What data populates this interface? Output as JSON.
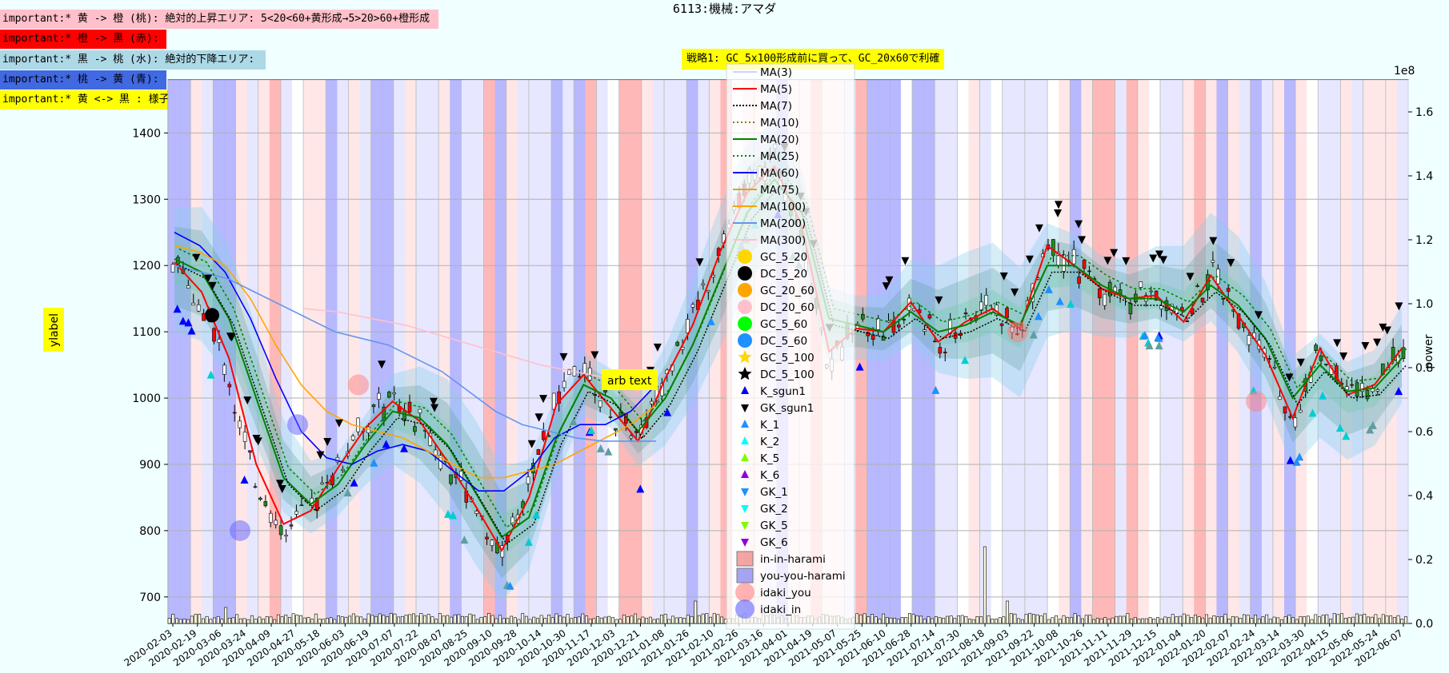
{
  "header": {
    "title": "6113:機械:アマダ",
    "strategy": "戦略1: GC_5x100形成前に買って、GC_20x60で利確"
  },
  "notes": [
    {
      "text": "important:* 黄 -> 橙 (桃): 絶対的上昇エリア: 5<20<60+黄形成→5>20>60+橙形成",
      "color": "#ffc0cb"
    },
    {
      "text": "important:* 橙 -> 黒 (赤):",
      "color": "#ff0000"
    },
    {
      "text": "important:* 黒 -> 桃 (水): 絶対的下降エリア:",
      "color": "#add8e6"
    },
    {
      "text": "important:* 桃 -> 黄 (青):",
      "color": "#4169e1"
    },
    {
      "text": "important:* 黄 <-> 黒 : 様子見:",
      "color": "#ffff00"
    }
  ],
  "annotation": {
    "text": "arb text"
  },
  "chart_data": {
    "type": "line",
    "title": "6113:機械:アマダ",
    "xlabel": "",
    "ylabel": "ylabel",
    "y2label": "power",
    "y2_exponent": "1e8",
    "ylim": [
      660,
      1480
    ],
    "y2lim": [
      0,
      1.7
    ],
    "yticks": [
      700,
      800,
      900,
      1000,
      1100,
      1200,
      1300,
      1400
    ],
    "y2ticks": [
      0.0,
      0.2,
      0.4,
      0.6,
      0.8,
      1.0,
      1.2,
      1.4,
      1.6
    ],
    "grid": true,
    "legend_position": "upper-center",
    "x_start": "2020-02-03",
    "x_end": "2022-06-07",
    "xtick_labels": [
      "2020-02-03",
      "2020-02-19",
      "2020-03-06",
      "2020-03-24",
      "2020-04-09",
      "2020-04-27",
      "2020-05-18",
      "2020-06-03",
      "2020-06-19",
      "2020-07-07",
      "2020-07-22",
      "2020-08-07",
      "2020-08-25",
      "2020-09-10",
      "2020-09-28",
      "2020-10-14",
      "2020-10-30",
      "2020-11-17",
      "2020-12-03",
      "2020-12-21",
      "2021-01-08",
      "2021-01-26",
      "2021-02-10",
      "2021-02-26",
      "2021-03-16",
      "2021-04-01",
      "2021-04-19",
      "2021-05-07",
      "2021-05-25",
      "2021-06-10",
      "2021-06-28",
      "2021-07-14",
      "2021-07-30",
      "2021-08-18",
      "2021-09-03",
      "2021-09-22",
      "2021-10-08",
      "2021-10-26",
      "2021-11-11",
      "2021-11-29",
      "2021-12-15",
      "2022-01-04",
      "2022-01-20",
      "2022-02-07",
      "2022-02-24",
      "2022-03-14",
      "2022-03-30",
      "2022-04-15",
      "2022-05-06",
      "2022-05-24",
      "2022-06-07"
    ],
    "price_series": [
      {
        "name": "close",
        "values": [
          1205,
          1150,
          1040,
          880,
          800,
          830,
          900,
          960,
          1000,
          960,
          900,
          830,
          760,
          860,
          1000,
          1040,
          980,
          930,
          1040,
          1120,
          1230,
          1320,
          1360,
          1250,
          1050,
          1110,
          1100,
          1150,
          1080,
          1120,
          1140,
          1100,
          1240,
          1200,
          1160,
          1150,
          1160,
          1110,
          1190,
          1120,
          1060,
          960,
          1080,
          1000,
          1020,
          1080
        ]
      },
      {
        "name": "MA(5)",
        "values": [
          1205,
          1160,
          1060,
          900,
          810,
          830,
          895,
          955,
          995,
          965,
          905,
          840,
          770,
          850,
          990,
          1035,
          985,
          935,
          1030,
          1110,
          1220,
          1310,
          1350,
          1260,
          1070,
          1105,
          1100,
          1145,
          1085,
          1115,
          1135,
          1105,
          1230,
          1200,
          1165,
          1150,
          1155,
          1115,
          1185,
          1125,
          1065,
          970,
          1075,
          1005,
          1020,
          1075
        ]
      },
      {
        "name": "MA(20)",
        "values": [
          1210,
          1190,
          1120,
          1000,
          880,
          840,
          870,
          930,
          980,
          970,
          930,
          860,
          790,
          820,
          940,
          1020,
          1000,
          950,
          1000,
          1080,
          1180,
          1280,
          1330,
          1280,
          1120,
          1110,
          1100,
          1130,
          1100,
          1110,
          1130,
          1110,
          1200,
          1200,
          1170,
          1150,
          1150,
          1130,
          1170,
          1140,
          1090,
          1000,
          1050,
          1010,
          1015,
          1060
        ]
      },
      {
        "name": "MA(60)",
        "values": [
          1250,
          1230,
          1190,
          1120,
          1030,
          950,
          910,
          900,
          920,
          930,
          920,
          890,
          860,
          860,
          890,
          940,
          960,
          960,
          980,
          1020
        ]
      },
      {
        "name": "MA(100)",
        "values": [
          1230,
          1220,
          1200,
          1150,
          1080,
          1020,
          980,
          960,
          950,
          940,
          920,
          900,
          880,
          880,
          890,
          900,
          920,
          940,
          960,
          990
        ]
      },
      {
        "name": "MA(200)",
        "values": [
          1200,
          1190,
          1180,
          1160,
          1140,
          1120,
          1100,
          1090,
          1080,
          1060,
          1040,
          1010,
          980,
          960,
          950,
          940,
          935,
          935,
          935
        ]
      },
      {
        "name": "MA(300)",
        "values": [
          1135,
          1130,
          1120,
          1110,
          1095,
          1080,
          1065,
          1050,
          1040,
          1030
        ]
      }
    ],
    "legend_entries": [
      "MA(3)",
      "MA(5)",
      "MA(7)",
      "MA(10)",
      "MA(20)",
      "MA(25)",
      "MA(60)",
      "MA(75)",
      "MA(100)",
      "MA(200)",
      "MA(300)",
      "GC_5_20",
      "DC_5_20",
      "GC_20_60",
      "DC_20_60",
      "GC_5_60",
      "DC_5_60",
      "GC_5_100",
      "DC_5_100",
      "K_sgun1",
      "GK_sgun1",
      "K_1",
      "K_2",
      "K_5",
      "K_6",
      "GK_1",
      "GK_2",
      "GK_5",
      "GK_6",
      "in-in-harami",
      "you-you-harami",
      "idaki_you",
      "idaki_in"
    ]
  },
  "colors": {
    "MA(3)": "#d0d0ff",
    "MA(5)": "#ff0000",
    "MA(7)": "#000000",
    "MA(10)": "#808000",
    "MA(20)": "#008000",
    "MA(25)": "#008000",
    "MA(60)": "#0000ff",
    "MA(75)": "#daa520",
    "MA(100)": "#ffa500",
    "MA(200)": "#6495ed",
    "MA(300)": "#ffc0cb",
    "GC_5_20": "#ffd700",
    "DC_5_20": "#000000",
    "GC_20_60": "#ffa500",
    "DC_20_60": "#ffc0cb",
    "GC_5_60": "#00ff00",
    "DC_5_60": "#1e90ff",
    "GC_5_100": "#ffd700",
    "DC_5_100": "#000000",
    "K_sgun1": "#0000ff",
    "GK_sgun1": "#000000",
    "K_1": "#1e90ff",
    "K_2": "#00ffff",
    "K_5": "#7cfc00",
    "K_6": "#9400d3",
    "GK_1": "#1e90ff",
    "GK_2": "#00ffff",
    "GK_5": "#7cfc00",
    "GK_6": "#9400d3",
    "in-in-harami": "#f08080",
    "you-you-harami": "#8080f0",
    "idaki_you": "#ff8080",
    "idaki_in": "#6060ff"
  }
}
